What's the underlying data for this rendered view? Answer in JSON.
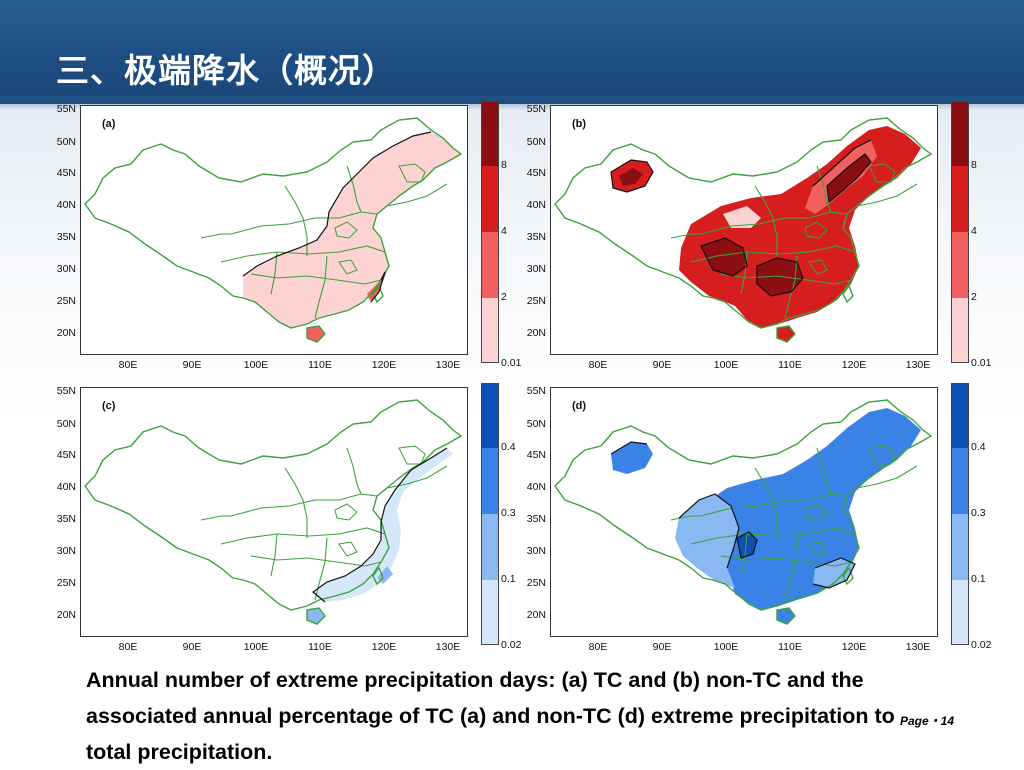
{
  "title": "三、极端降水（概况）",
  "caption": " Annual number of extreme precipitation days: (a) TC and (b) non-TC and the associated annual percentage of TC (a) and non-TC (d) extreme precipitation to total precipitation.",
  "page_number": "Page・14",
  "lat_ticks": [
    "55N",
    "50N",
    "45N",
    "40N",
    "35N",
    "30N",
    "25N",
    "20N"
  ],
  "lon_ticks": [
    "80E",
    "90E",
    "100E",
    "110E",
    "120E",
    "130E"
  ],
  "panels": [
    {
      "letter": "(a)",
      "scheme": "red"
    },
    {
      "letter": "(b)",
      "scheme": "red"
    },
    {
      "letter": "(c)",
      "scheme": "blue"
    },
    {
      "letter": "(d)",
      "scheme": "blue"
    }
  ],
  "colorbars": {
    "red": {
      "labels": [
        "8",
        "4",
        "2",
        "0.01"
      ],
      "colors": [
        "#8b0e12",
        "#d61e1e",
        "#f26060",
        "#fcd2d2"
      ]
    },
    "blue": {
      "labels": [
        "0.4",
        "0.3",
        "0.1",
        "0.02"
      ],
      "colors": [
        "#0d4fb5",
        "#3b82e6",
        "#8ab8f2",
        "#d6e7fc"
      ]
    }
  },
  "colors": {
    "header": "#1d4e83",
    "boundary": "#3ca23c",
    "contour": "#111111"
  }
}
